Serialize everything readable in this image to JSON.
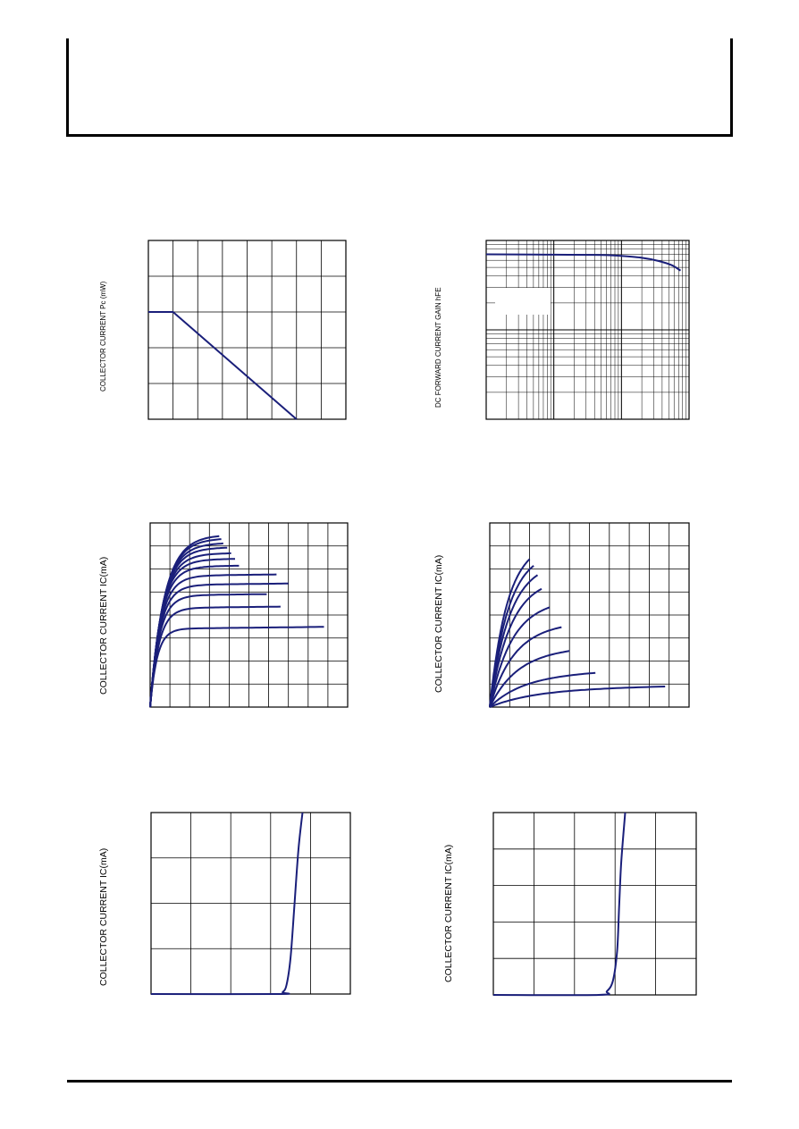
{
  "colors": {
    "curve": "#1a1f7a",
    "grid": "#000000",
    "frame": "#000000"
  },
  "chart_data": [
    {
      "id": "chart-power-derating",
      "type": "line",
      "ylabel": "COLLECTOR CURRENT  Pc (mW)",
      "xlim": [
        0,
        8
      ],
      "ylim": [
        0,
        5
      ],
      "grid": {
        "x_divisions": 8,
        "y_divisions": 5
      },
      "series": [
        {
          "x": [
            0,
            1,
            6
          ],
          "y": [
            3,
            3,
            0
          ]
        }
      ]
    },
    {
      "id": "chart-hfe",
      "type": "line",
      "ylabel": "DC FORWARD CURRENT GAIN  hFE",
      "xscale": "log",
      "yscale": "log",
      "xlim": [
        0.1,
        100
      ],
      "ylim": [
        10,
        1000
      ],
      "series": [
        {
          "x": [
            0.1,
            0.5,
            1,
            3,
            6,
            10,
            20,
            35,
            55,
            75
          ],
          "y": [
            700,
            695,
            693,
            690,
            685,
            672,
            640,
            590,
            530,
            460
          ]
        }
      ]
    },
    {
      "id": "chart-output-characteristics-1",
      "type": "line",
      "ylabel": "COLLECTOR CURRENT  IC(mA)",
      "xlim": [
        0,
        10
      ],
      "ylim": [
        0,
        8
      ],
      "grid": {
        "x_divisions": 10,
        "y_divisions": 8
      },
      "series": [
        {
          "sat": 3.4,
          "k": 0.65,
          "xend": 8.8
        },
        {
          "sat": 4.3,
          "k": 0.8,
          "xend": 6.6
        },
        {
          "sat": 4.85,
          "k": 0.85,
          "xend": 5.9
        },
        {
          "sat": 5.3,
          "k": 0.9,
          "xend": 7.0
        },
        {
          "sat": 5.7,
          "k": 0.95,
          "xend": 6.4
        },
        {
          "sat": 6.1,
          "k": 1.0,
          "xend": 4.5
        },
        {
          "sat": 6.4,
          "k": 1.05,
          "xend": 4.3
        },
        {
          "sat": 6.65,
          "k": 1.1,
          "xend": 4.1
        },
        {
          "sat": 6.9,
          "k": 1.15,
          "xend": 3.9
        },
        {
          "sat": 7.1,
          "k": 1.2,
          "xend": 3.7
        },
        {
          "sat": 7.3,
          "k": 1.25,
          "xend": 3.6
        },
        {
          "sat": 7.45,
          "k": 1.3,
          "xend": 3.5
        }
      ]
    },
    {
      "id": "chart-output-characteristics-2",
      "type": "line",
      "ylabel": "COLLECTOR CURRENT  IC(mA)",
      "xlim": [
        0,
        10
      ],
      "ylim": [
        0,
        8
      ],
      "grid": {
        "x_divisions": 10,
        "y_divisions": 8
      },
      "series": [
        {
          "sat": 0.75,
          "k": 4.0,
          "xend": 8.8,
          "slope": 0.15
        },
        {
          "sat": 1.35,
          "k": 3.0,
          "xend": 5.3,
          "slope": 0.3
        },
        {
          "sat": 2.4,
          "k": 2.5,
          "xend": 4.0,
          "slope": 0.35
        },
        {
          "sat": 3.5,
          "k": 2.2,
          "xend": 3.6,
          "slope": 0.35
        },
        {
          "sat": 4.5,
          "k": 2.0,
          "xend": 3.0,
          "slope": 0.35
        },
        {
          "sat": 5.5,
          "k": 1.9,
          "xend": 2.6,
          "slope": 0.3
        },
        {
          "sat": 6.2,
          "k": 1.8,
          "xend": 2.4,
          "slope": 0.3
        },
        {
          "sat": 6.7,
          "k": 1.7,
          "xend": 2.2,
          "slope": 0.3
        },
        {
          "sat": 7.1,
          "k": 1.6,
          "xend": 2.0,
          "slope": 0.25
        }
      ]
    },
    {
      "id": "chart-input-characteristics-1",
      "type": "line",
      "ylabel": "COLLECTOR CURRENT  IC(mA)",
      "xlim": [
        0,
        5
      ],
      "ylim": [
        0,
        4
      ],
      "grid": {
        "x_divisions": 5,
        "y_divisions": 4
      },
      "series": [
        {
          "x": [
            0,
            3.2,
            3.3,
            3.4,
            3.5,
            3.6,
            3.7,
            3.8
          ],
          "y": [
            0,
            0,
            0.04,
            0.2,
            0.8,
            2.0,
            3.2,
            4.0
          ]
        }
      ]
    },
    {
      "id": "chart-input-characteristics-2",
      "type": "line",
      "ylabel": "COLLECTOR CURRENT  IC(mA)",
      "xlim": [
        0,
        5
      ],
      "ylim": [
        0,
        5
      ],
      "grid": {
        "x_divisions": 5,
        "y_divisions": 5
      },
      "series": [
        {
          "x": [
            0,
            2.6,
            2.8,
            2.95,
            3.05,
            3.1,
            3.15,
            3.25
          ],
          "y": [
            0,
            0,
            0.1,
            0.4,
            1.2,
            2.4,
            3.6,
            5.0
          ]
        }
      ]
    }
  ]
}
